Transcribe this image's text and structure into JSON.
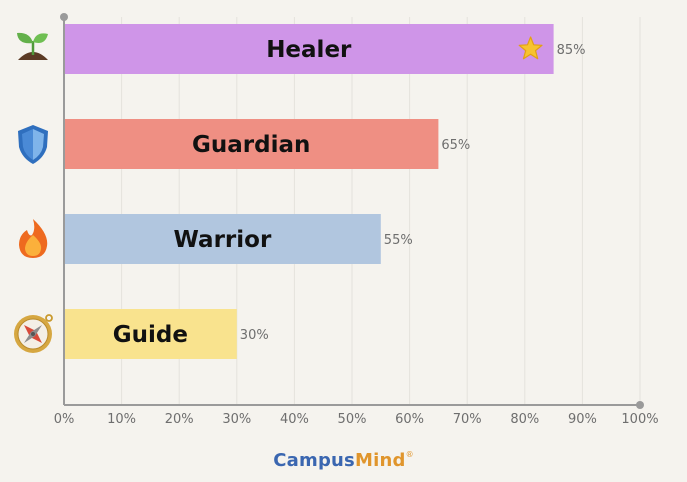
{
  "chart_data": {
    "type": "bar",
    "orientation": "horizontal",
    "categories": [
      "Healer",
      "Guardian",
      "Warrior",
      "Guide"
    ],
    "values": [
      85,
      65,
      55,
      30
    ],
    "value_labels": [
      "85%",
      "65%",
      "55%",
      "30%"
    ],
    "bar_colors": [
      "#cf95e8",
      "#ef8f83",
      "#b1c6df",
      "#f9e38e"
    ],
    "category_icons": [
      "seedling-icon",
      "shield-icon",
      "fire-icon",
      "compass-icon"
    ],
    "highlight_icon": "star-icon",
    "xlim": [
      0,
      100
    ],
    "xticks": [
      "0%",
      "10%",
      "20%",
      "30%",
      "40%",
      "50%",
      "60%",
      "70%",
      "80%",
      "90%",
      "100%"
    ],
    "grid": "vertical"
  },
  "branding": {
    "logo_part1": "Campus",
    "logo_part2": "Mind",
    "logo_mark": "®"
  }
}
